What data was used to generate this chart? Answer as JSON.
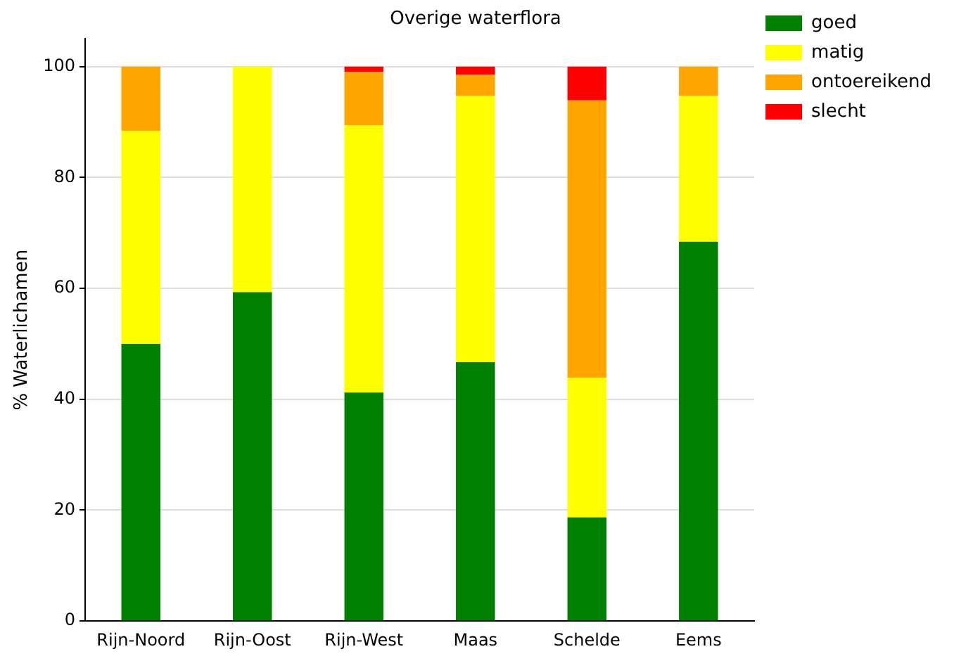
{
  "chart_data": {
    "type": "bar",
    "title": "Overige waterflora",
    "ylabel": "% Waterlichamen",
    "categories": [
      "Rijn-Noord",
      "Rijn-Oost",
      "Rijn-West",
      "Maas",
      "Schelde",
      "Eems"
    ],
    "stacked": true,
    "series": [
      {
        "name": "goed",
        "color": "#008000",
        "values": [
          50,
          59.3,
          41.2,
          46.7,
          18.7,
          68.4
        ]
      },
      {
        "name": "matig",
        "color": "#ffff00",
        "values": [
          38.4,
          40.7,
          48.2,
          48,
          25.2,
          26.3
        ]
      },
      {
        "name": "ontoereikend",
        "color": "#ffa500",
        "values": [
          11.6,
          0,
          9.6,
          3.8,
          50,
          5.3
        ]
      },
      {
        "name": "slecht",
        "color": "#ff0000",
        "values": [
          0,
          0,
          1,
          1.5,
          6.1,
          0
        ]
      }
    ],
    "ylim": [
      0,
      105
    ],
    "yticks": [
      0,
      20,
      40,
      60,
      80,
      100
    ],
    "grid": "y",
    "legend": "top right"
  }
}
